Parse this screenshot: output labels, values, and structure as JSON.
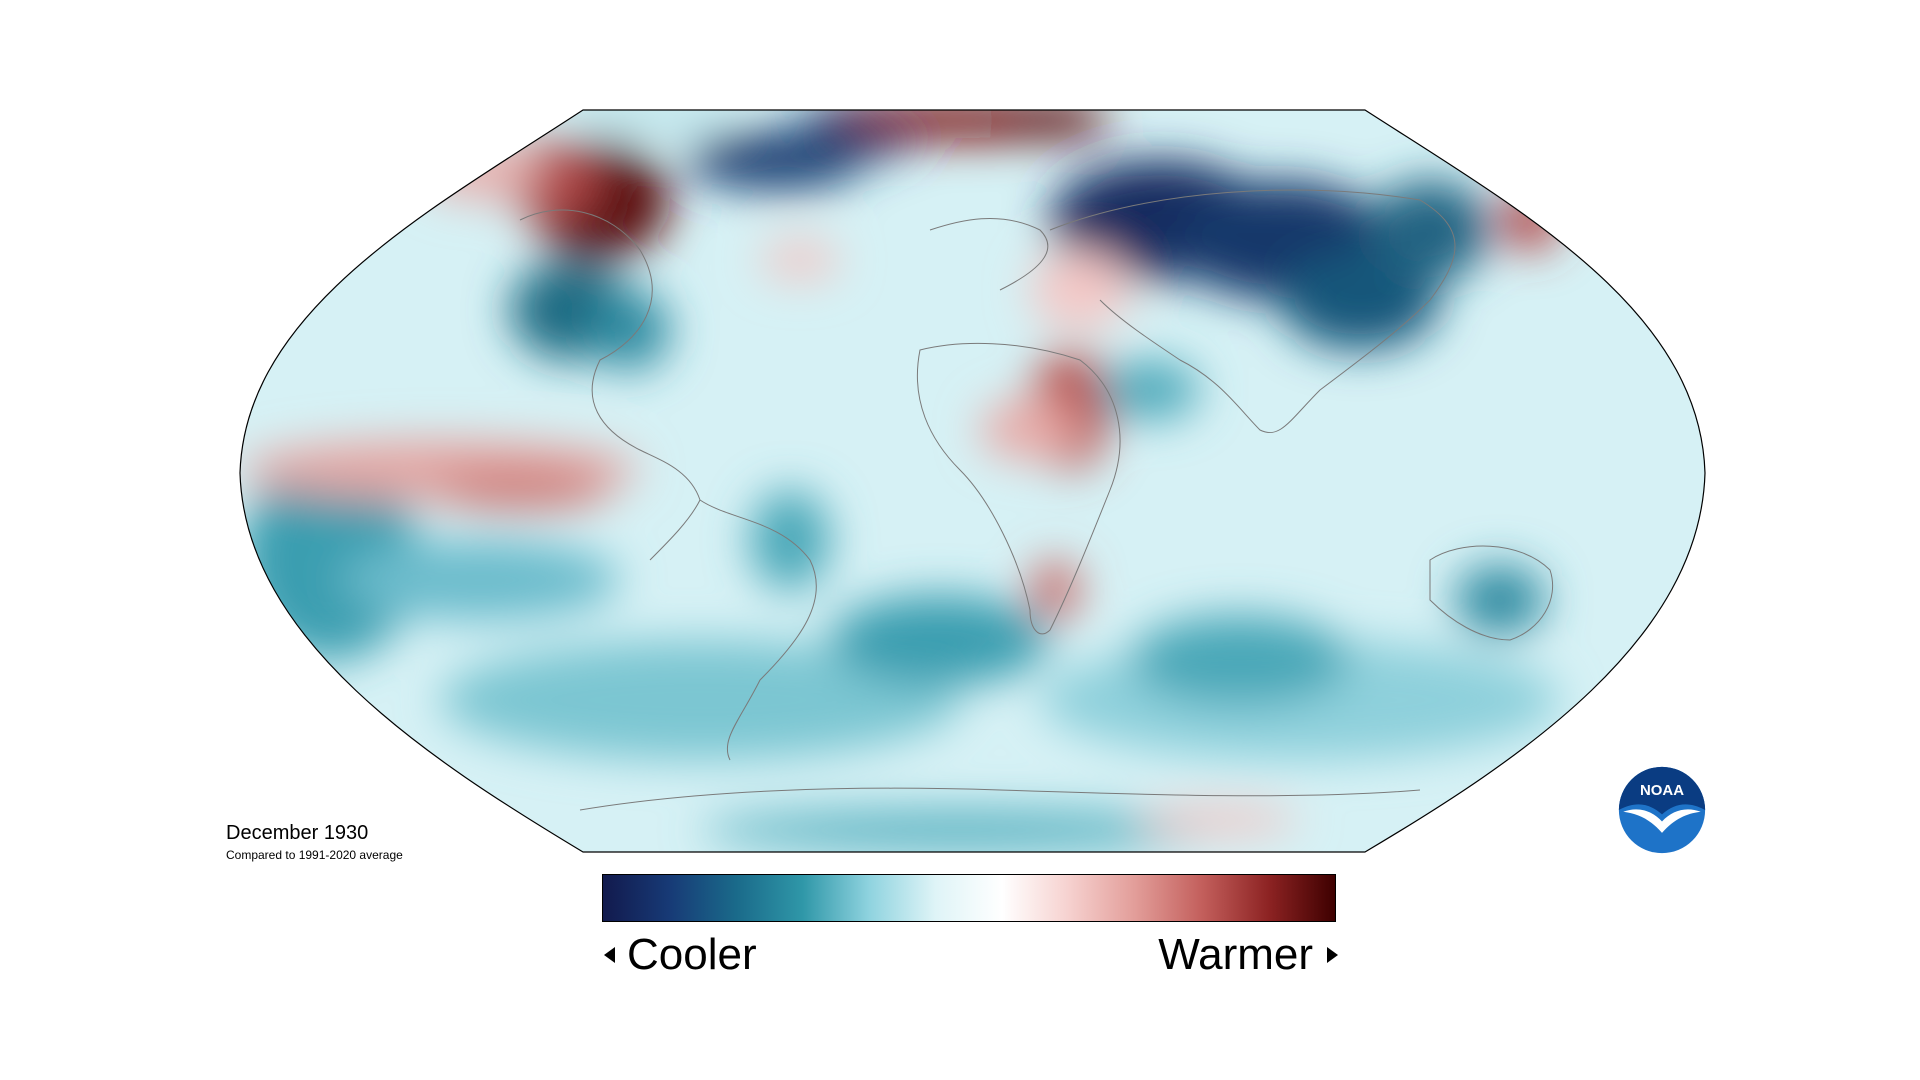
{
  "map": {
    "projection": "Robinson",
    "coastline_color": "#7a7a7a",
    "outline_color": "#000000"
  },
  "caption": {
    "date": "December 1930",
    "comparison": "Compared to 1991-2020 average"
  },
  "legend": {
    "cooler_label": "Cooler",
    "warmer_label": "Warmer",
    "colors": [
      "#121a4d",
      "#173a76",
      "#1a6a8a",
      "#2f97a8",
      "#8fd3df",
      "#dff4f7",
      "#ffffff",
      "#f6d1cf",
      "#e29d99",
      "#c35f5c",
      "#8d2323",
      "#3e0000"
    ]
  },
  "logo": {
    "text": "NOAA",
    "colors": {
      "sky": "#0a3c82",
      "sea": "#1e73c8",
      "bird": "#ffffff"
    }
  }
}
